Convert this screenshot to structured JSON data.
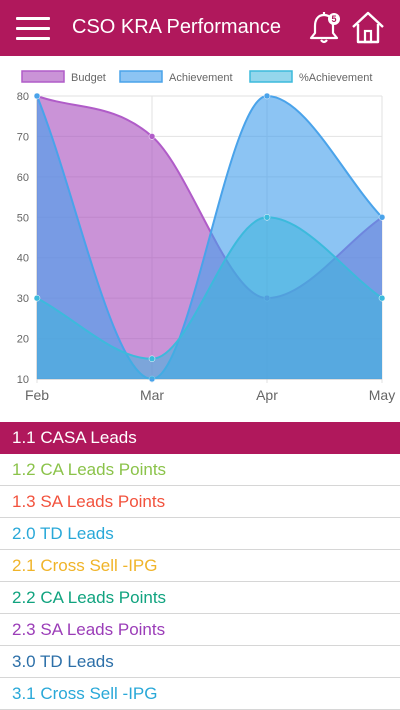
{
  "header": {
    "title": "CSO KRA Performance",
    "notification_count": "5",
    "menu_icon": "hamburger-menu-icon",
    "bell_icon": "bell-icon",
    "home_icon": "home-icon",
    "background_color": "#b0185c"
  },
  "chart_data": {
    "type": "area",
    "categories": [
      "Feb",
      "Mar",
      "Apr",
      "May"
    ],
    "ylim": [
      10,
      80
    ],
    "yticks": [
      10,
      20,
      30,
      40,
      50,
      60,
      70,
      80
    ],
    "grid": true,
    "legend_position": "top",
    "smooth": true,
    "series": [
      {
        "name": "Budget",
        "values": [
          80,
          70,
          30,
          50
        ],
        "fill": "rgba(170,80,190,0.62)",
        "stroke": "#b05cc8"
      },
      {
        "name": "Achievement",
        "values": [
          80,
          10,
          80,
          50
        ],
        "fill": "rgba(70,160,235,0.62)",
        "stroke": "#4aa3ea"
      },
      {
        "name": "%Achievement",
        "values": [
          30,
          15,
          50,
          30
        ],
        "fill": "rgba(60,180,220,0.55)",
        "stroke": "#3cbadc"
      }
    ]
  },
  "list": {
    "items": [
      {
        "label": "1.1 CASA Leads",
        "color": "#ffffff",
        "active": true
      },
      {
        "label": "1.2 CA Leads Points",
        "color": "#8bc34a",
        "active": false
      },
      {
        "label": "1.3 SA Leads Points",
        "color": "#f2523d",
        "active": false
      },
      {
        "label": "2.0 TD Leads",
        "color": "#29a8d8",
        "active": false
      },
      {
        "label": "2.1 Cross Sell -IPG",
        "color": "#f0b429",
        "active": false
      },
      {
        "label": "2.2 CA Leads Points",
        "color": "#10a37f",
        "active": false
      },
      {
        "label": "2.3 SA Leads Points",
        "color": "#9b3db8",
        "active": false
      },
      {
        "label": "3.0 TD Leads",
        "color": "#2c6fa8",
        "active": false
      },
      {
        "label": "3.1 Cross Sell -IPG",
        "color": "#29a8d8",
        "active": false
      }
    ]
  }
}
